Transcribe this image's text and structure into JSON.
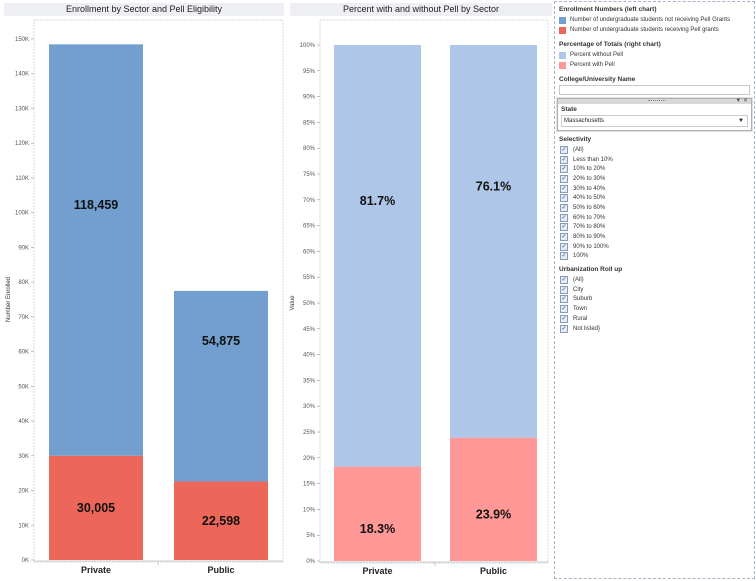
{
  "colors": {
    "not_pell_count": "#729fcf",
    "pell_count": "#ec665a",
    "not_pell_pct": "#aec7e8",
    "pell_pct": "#ff9896"
  },
  "left_chart": {
    "title": "Enrollment by Sector and Pell Eligibility",
    "ylabel": "Number Enrolled",
    "ticks": [
      "0K",
      "10K",
      "20K",
      "30K",
      "40K",
      "50K",
      "60K",
      "70K",
      "80K",
      "90K",
      "100K",
      "110K",
      "120K",
      "130K",
      "140K",
      "150K"
    ]
  },
  "right_chart": {
    "title": "Percent with and without Pell by Sector",
    "ylabel": "Value",
    "ticks": [
      "0%",
      "5%",
      "10%",
      "15%",
      "20%",
      "25%",
      "30%",
      "35%",
      "40%",
      "45%",
      "50%",
      "55%",
      "60%",
      "65%",
      "70%",
      "75%",
      "80%",
      "85%",
      "90%",
      "95%",
      "100%"
    ]
  },
  "chart_data": [
    {
      "type": "bar",
      "stacked": true,
      "title": "Enrollment by Sector and Pell Eligibility",
      "xlabel": "",
      "ylabel": "Number Enrolled",
      "categories": [
        "Private",
        "Public"
      ],
      "series": [
        {
          "name": "Number of undergraduate students receiving Pell grants",
          "values": [
            30005,
            22598
          ],
          "labels": [
            "30,005",
            "22,598"
          ]
        },
        {
          "name": "Number of undergraduate students not receiving Pell Grants",
          "values": [
            118459,
            54875
          ],
          "labels": [
            "118,459",
            "54,875"
          ]
        }
      ],
      "ylim": [
        0,
        150000
      ],
      "ytick_step": 10000,
      "grid": false
    },
    {
      "type": "bar",
      "stacked": true,
      "title": "Percent with and without Pell by Sector",
      "xlabel": "",
      "ylabel": "Value",
      "categories": [
        "Private",
        "Public"
      ],
      "series": [
        {
          "name": "Percent with Pell",
          "values": [
            18.3,
            23.9
          ],
          "labels": [
            "18.3%",
            "23.9%"
          ]
        },
        {
          "name": "Percent  without Pell",
          "values": [
            81.7,
            76.1
          ],
          "labels": [
            "81.7%",
            "76.1%"
          ]
        }
      ],
      "ylim": [
        0,
        100
      ],
      "ytick_step": 5,
      "grid": false
    }
  ],
  "legend": {
    "enrollment_title": "Enrollment Numbers (left chart)",
    "enrollment_items": [
      "Number of undergraduate students not receiving Pell Grants",
      "Number of undergraduate students receiving Pell grants"
    ],
    "percent_title": "Percentage of Totals (right chart)",
    "percent_items": [
      "Percent  without Pell",
      "Percent with Pell"
    ]
  },
  "filters": {
    "college_label": "College/University Name",
    "college_value": "",
    "state_label": "State",
    "state_value": "Massachusetts",
    "state_controls": "▼ ✕",
    "selectivity_label": "Selectivity",
    "selectivity_options": [
      "(All)",
      "Less than 10%",
      "10% to 20%",
      "20% to 30%",
      "30% to 40%",
      "40% to 50%",
      "50% to 60%",
      "60% to 70%",
      "70% to 80%",
      "80% to 90%",
      "90% to 100%",
      "100%"
    ],
    "urbanization_label": "Urbanization Roll up",
    "urbanization_options": [
      "(All)",
      "City",
      "Suburb",
      "Town",
      "Rural",
      "Not listed}"
    ],
    "checked": true
  }
}
